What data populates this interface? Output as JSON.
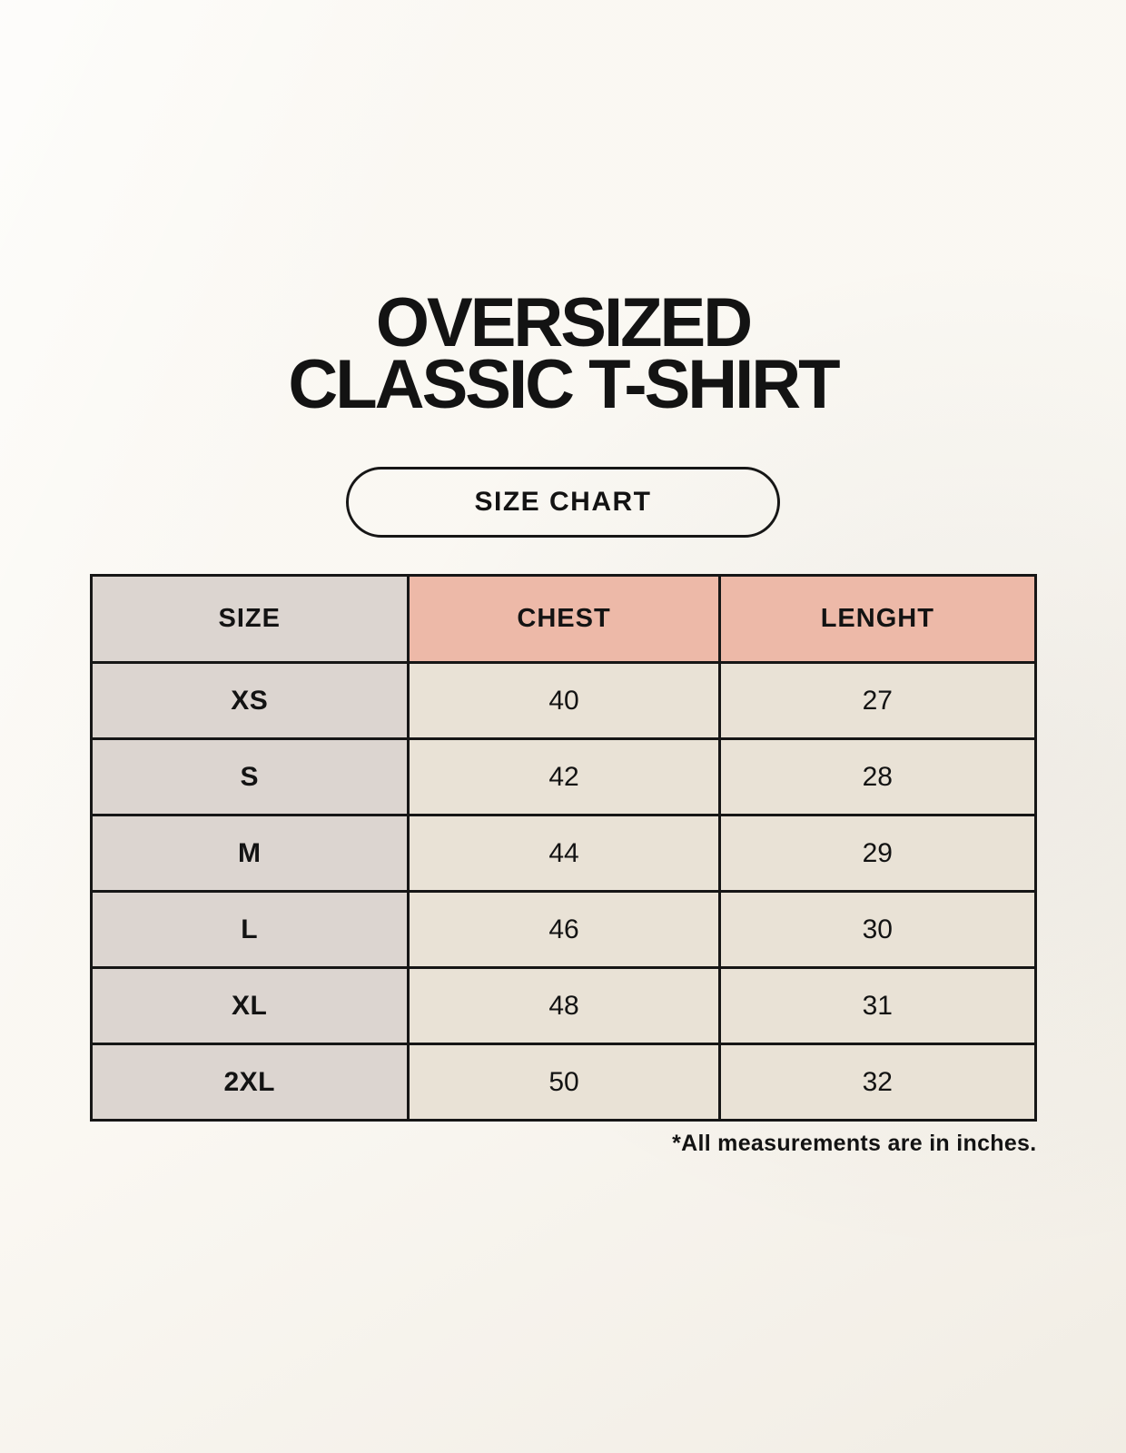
{
  "title": {
    "line1": "OVERSIZED",
    "line2": "CLASSIC T-SHIRT"
  },
  "size_chart_button": {
    "label": "SIZE CHART"
  },
  "table": {
    "headers": {
      "size": "SIZE",
      "chest": "CHEST",
      "length": "LENGHT"
    },
    "rows": [
      {
        "size": "XS",
        "chest": "40",
        "length": "27"
      },
      {
        "size": "S",
        "chest": "42",
        "length": "28"
      },
      {
        "size": "M",
        "chest": "44",
        "length": "29"
      },
      {
        "size": "L",
        "chest": "46",
        "length": "30"
      },
      {
        "size": "XL",
        "chest": "48",
        "length": "31"
      },
      {
        "size": "2XL",
        "chest": "50",
        "length": "32"
      }
    ]
  },
  "footnote": "*All measurements are in inches.",
  "colors": {
    "background": "#f8f4ec",
    "header_accent_pink": "#edb9a8",
    "size_column_gray": "#dcd5d0",
    "data_cell_beige": "#e9e2d6",
    "table_border": "#161616",
    "text": "#131313"
  }
}
